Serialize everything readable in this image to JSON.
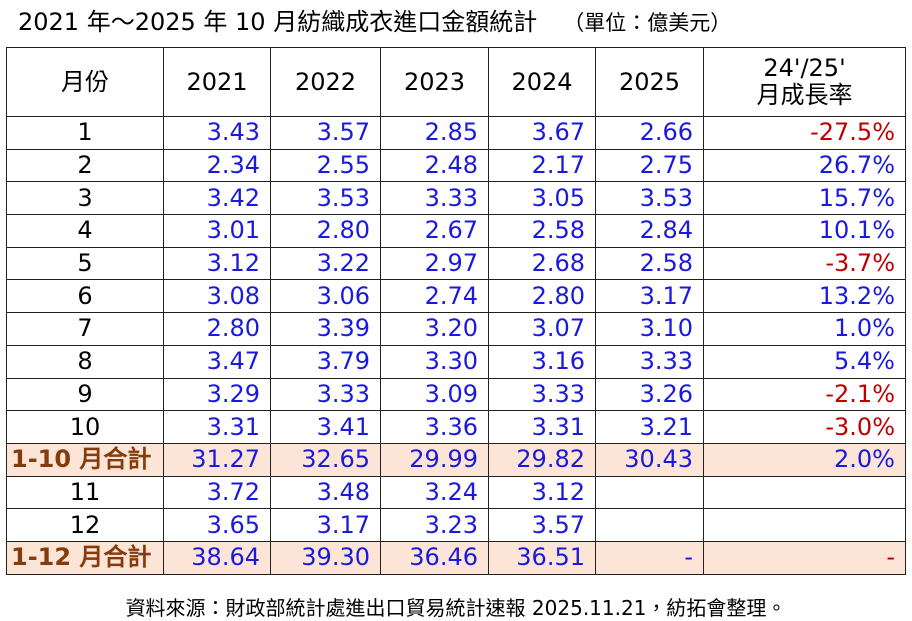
{
  "title": "2021 年～2025 年 10 月紡織成衣進口金額統計",
  "unit": "（單位：億美元）",
  "table": {
    "header": [
      "月份",
      "2021",
      "2022",
      "2023",
      "2024",
      "2025",
      [
        "24'/25'",
        "月成長率"
      ]
    ],
    "rows": [
      {
        "cells": [
          "1",
          "3.43",
          "3.57",
          "2.85",
          "3.67",
          "2.66",
          "-27.5%"
        ],
        "total": false
      },
      {
        "cells": [
          "2",
          "2.34",
          "2.55",
          "2.48",
          "2.17",
          "2.75",
          "26.7%"
        ],
        "total": false
      },
      {
        "cells": [
          "3",
          "3.42",
          "3.53",
          "3.33",
          "3.05",
          "3.53",
          "15.7%"
        ],
        "total": false
      },
      {
        "cells": [
          "4",
          "3.01",
          "2.80",
          "2.67",
          "2.58",
          "2.84",
          "10.1%"
        ],
        "total": false
      },
      {
        "cells": [
          "5",
          "3.12",
          "3.22",
          "2.97",
          "2.68",
          "2.58",
          "-3.7%"
        ],
        "total": false
      },
      {
        "cells": [
          "6",
          "3.08",
          "3.06",
          "2.74",
          "2.80",
          "3.17",
          "13.2%"
        ],
        "total": false
      },
      {
        "cells": [
          "7",
          "2.80",
          "3.39",
          "3.20",
          "3.07",
          "3.10",
          "1.0%"
        ],
        "total": false
      },
      {
        "cells": [
          "8",
          "3.47",
          "3.79",
          "3.30",
          "3.16",
          "3.33",
          "5.4%"
        ],
        "total": false
      },
      {
        "cells": [
          "9",
          "3.29",
          "3.33",
          "3.09",
          "3.33",
          "3.26",
          "-2.1%"
        ],
        "total": false
      },
      {
        "cells": [
          "10",
          "3.31",
          "3.41",
          "3.36",
          "3.31",
          "3.21",
          "-3.0%"
        ],
        "total": false
      },
      {
        "cells": [
          "1-10 月合計",
          "31.27",
          "32.65",
          "29.99",
          "29.82",
          "30.43",
          "2.0%"
        ],
        "total": true
      },
      {
        "cells": [
          "11",
          "3.72",
          "3.48",
          "3.24",
          "3.12",
          null,
          null
        ],
        "total": false
      },
      {
        "cells": [
          "12",
          "3.65",
          "3.17",
          "3.23",
          "3.57",
          null,
          null
        ],
        "total": false
      },
      {
        "cells": [
          "1-12 月合計",
          "38.64",
          "39.30",
          "36.46",
          "36.51",
          "-",
          "-"
        ],
        "total": true
      }
    ]
  },
  "source": "資料來源：財政部統計處進出口貿易統計速報 2025.11.21，紡拓會整理。"
}
